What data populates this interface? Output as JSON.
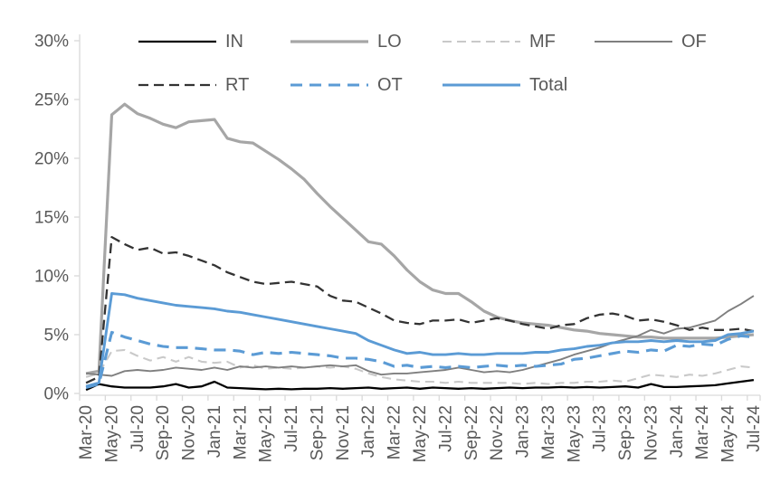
{
  "chart_data": {
    "type": "line",
    "title": "",
    "xlabel": "",
    "ylabel": "",
    "ylim": [
      0,
      30
    ],
    "grid": false,
    "legend_position": "top",
    "axis_color": "#d9d9d9",
    "label_color": "#595959",
    "y_ticks": [
      {
        "label": "0%",
        "value": 0
      },
      {
        "label": "5%",
        "value": 5
      },
      {
        "label": "10%",
        "value": 10
      },
      {
        "label": "15%",
        "value": 15
      },
      {
        "label": "20%",
        "value": 20
      },
      {
        "label": "25%",
        "value": 25
      },
      {
        "label": "30%",
        "value": 30
      }
    ],
    "x_tick_labels": [
      "Mar-20",
      "May-20",
      "Jul-20",
      "Sep-20",
      "Nov-20",
      "Jan-21",
      "Mar-21",
      "May-21",
      "Jul-21",
      "Sep-21",
      "Nov-21",
      "Jan-22",
      "Mar-22",
      "May-22",
      "Jul-22",
      "Sep-22",
      "Nov-22",
      "Jan-23",
      "Mar-23",
      "May-23",
      "Jul-23",
      "Sep-23",
      "Nov-23",
      "Jan-24",
      "Mar-24",
      "May-24",
      "Jul-24"
    ],
    "x_frequency": "monthly (labels every 2 months)",
    "legend_rows": [
      [
        "IN",
        "LO",
        "MF",
        "OF"
      ],
      [
        "RT",
        "OT",
        "Total"
      ]
    ],
    "series": [
      {
        "name": "IN",
        "color": "#000000",
        "dasharray": "",
        "width": 2.3,
        "values": [
          0.3,
          0.8,
          0.6,
          0.5,
          0.5,
          0.5,
          0.6,
          0.8,
          0.5,
          0.6,
          1.0,
          0.5,
          0.45,
          0.4,
          0.35,
          0.4,
          0.35,
          0.4,
          0.4,
          0.45,
          0.4,
          0.45,
          0.5,
          0.4,
          0.45,
          0.5,
          0.4,
          0.5,
          0.45,
          0.4,
          0.45,
          0.4,
          0.45,
          0.5,
          0.45,
          0.5,
          0.5,
          0.55,
          0.5,
          0.55,
          0.5,
          0.55,
          0.6,
          0.5,
          0.8,
          0.55,
          0.55,
          0.6,
          0.65,
          0.7,
          0.85,
          1.0,
          1.15
        ]
      },
      {
        "name": "LO",
        "color": "#a6a6a6",
        "dasharray": "",
        "width": 3.2,
        "values": [
          1.7,
          1.9,
          23.7,
          24.6,
          23.8,
          23.4,
          22.9,
          22.6,
          23.1,
          23.2,
          23.3,
          21.7,
          21.4,
          21.3,
          20.6,
          19.9,
          19.1,
          18.2,
          17.0,
          15.9,
          14.9,
          13.9,
          12.9,
          12.7,
          11.7,
          10.5,
          9.5,
          8.8,
          8.5,
          8.5,
          7.8,
          7.0,
          6.5,
          6.2,
          6.0,
          5.9,
          5.8,
          5.6,
          5.4,
          5.3,
          5.1,
          5.0,
          4.9,
          4.8,
          4.8,
          4.7,
          4.7,
          4.7,
          4.7,
          4.7,
          4.8,
          4.9,
          5.0
        ]
      },
      {
        "name": "MF",
        "color": "#c9c9c9",
        "dasharray": "10,6",
        "width": 2.1,
        "values": [
          1.4,
          1.7,
          3.6,
          3.7,
          3.2,
          2.8,
          3.1,
          2.7,
          3.1,
          2.7,
          2.6,
          2.7,
          2.2,
          2.4,
          2.1,
          2.2,
          2.1,
          2.2,
          2.3,
          2.2,
          2.3,
          2.1,
          1.7,
          1.4,
          1.2,
          1.1,
          1.0,
          1.0,
          0.9,
          1.0,
          0.9,
          0.9,
          0.9,
          0.9,
          0.8,
          0.9,
          0.8,
          0.9,
          0.9,
          1.0,
          1.0,
          1.1,
          1.0,
          1.3,
          1.6,
          1.5,
          1.4,
          1.6,
          1.5,
          1.7,
          2.0,
          2.3,
          2.2
        ]
      },
      {
        "name": "OF",
        "color": "#7f7f7f",
        "dasharray": "",
        "width": 1.9,
        "values": [
          1.7,
          1.6,
          1.5,
          1.9,
          2.0,
          1.9,
          2.0,
          2.2,
          2.1,
          2.0,
          2.2,
          2.0,
          2.3,
          2.2,
          2.3,
          2.2,
          2.3,
          2.2,
          2.3,
          2.4,
          2.3,
          2.4,
          1.9,
          1.6,
          1.7,
          1.7,
          1.8,
          1.9,
          2.0,
          2.2,
          2.0,
          1.8,
          1.9,
          1.8,
          2.0,
          2.3,
          2.6,
          2.9,
          3.3,
          3.6,
          3.9,
          4.3,
          4.6,
          4.9,
          5.4,
          5.1,
          5.5,
          5.6,
          5.9,
          6.2,
          7.0,
          7.6,
          8.3
        ]
      },
      {
        "name": "RT",
        "color": "#333333",
        "dasharray": "11,6",
        "width": 2.3,
        "values": [
          0.9,
          1.4,
          13.3,
          12.7,
          12.2,
          12.4,
          11.9,
          12.0,
          11.7,
          11.3,
          10.9,
          10.3,
          9.9,
          9.5,
          9.3,
          9.4,
          9.5,
          9.3,
          9.1,
          8.3,
          7.9,
          7.8,
          7.3,
          6.8,
          6.2,
          6.0,
          5.9,
          6.2,
          6.2,
          6.3,
          6.0,
          6.2,
          6.4,
          6.2,
          5.9,
          5.7,
          5.5,
          5.8,
          5.9,
          6.4,
          6.7,
          6.8,
          6.6,
          6.2,
          6.3,
          6.1,
          5.8,
          5.4,
          5.6,
          5.4,
          5.4,
          5.5,
          5.3
        ]
      },
      {
        "name": "OT",
        "color": "#5b9bd5",
        "dasharray": "13,8",
        "width": 3.1,
        "values": [
          0.5,
          0.8,
          5.2,
          4.8,
          4.5,
          4.2,
          4.0,
          3.9,
          3.9,
          3.8,
          3.7,
          3.7,
          3.6,
          3.3,
          3.5,
          3.4,
          3.5,
          3.4,
          3.3,
          3.2,
          3.0,
          3.0,
          2.9,
          2.7,
          2.3,
          2.4,
          2.2,
          2.3,
          2.2,
          2.3,
          2.2,
          2.3,
          2.4,
          2.3,
          2.4,
          2.3,
          2.4,
          2.5,
          2.9,
          3.0,
          3.2,
          3.4,
          3.6,
          3.5,
          3.7,
          3.6,
          4.1,
          4.0,
          4.2,
          4.1,
          4.6,
          4.9,
          4.8
        ]
      },
      {
        "name": "Total",
        "color": "#5b9bd5",
        "dasharray": "",
        "width": 2.9,
        "values": [
          0.6,
          0.9,
          8.5,
          8.4,
          8.1,
          7.9,
          7.7,
          7.5,
          7.4,
          7.3,
          7.2,
          7.0,
          6.9,
          6.7,
          6.5,
          6.3,
          6.1,
          5.9,
          5.7,
          5.5,
          5.3,
          5.1,
          4.5,
          4.1,
          3.7,
          3.4,
          3.5,
          3.3,
          3.3,
          3.4,
          3.3,
          3.3,
          3.4,
          3.4,
          3.4,
          3.5,
          3.5,
          3.7,
          3.8,
          4.0,
          4.1,
          4.3,
          4.4,
          4.4,
          4.5,
          4.4,
          4.5,
          4.4,
          4.4,
          4.5,
          5.0,
          5.1,
          5.3
        ]
      }
    ]
  }
}
